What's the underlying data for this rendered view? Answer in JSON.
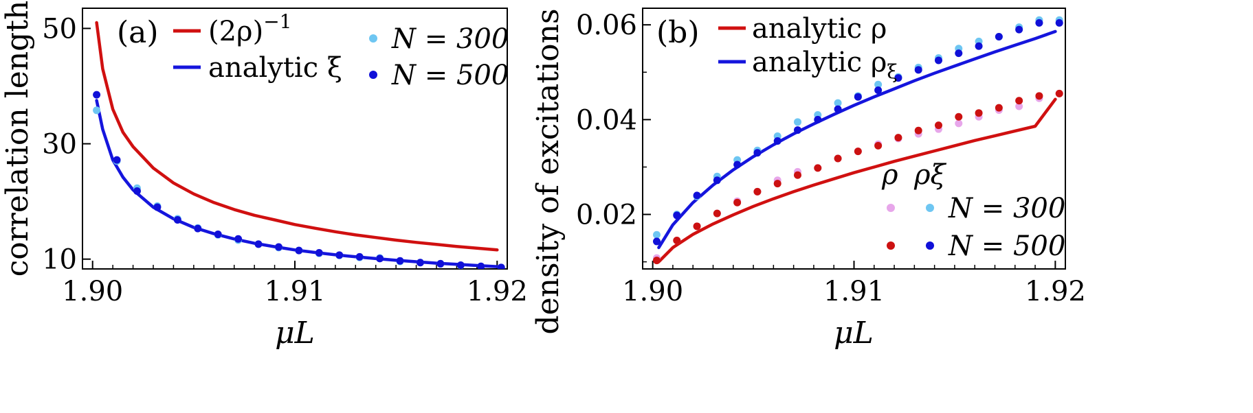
{
  "colors": {
    "red": "#d01010",
    "blue": "#1515dd",
    "light_blue": "#6ec6f2",
    "dark_blue": "#1010d8",
    "pink": "#e7a6ea",
    "dark_red": "#cc1111"
  },
  "chart_data": [
    {
      "type": "line",
      "panel": "(a)",
      "xlabel": "μL",
      "ylabel": "correlation length",
      "xlim": [
        1.8995,
        1.9205
      ],
      "ylim": [
        8.3,
        53.5
      ],
      "xticks": [
        1.9,
        1.91,
        1.92
      ],
      "xtick_labels": [
        "1.90",
        "1.91",
        "1.92"
      ],
      "yticks": [
        10,
        30,
        50
      ],
      "ytick_labels": [
        "10",
        "30",
        "50"
      ],
      "x_minor_ticks": [
        1.901,
        1.902,
        1.903,
        1.904,
        1.905,
        1.906,
        1.907,
        1.908,
        1.909,
        1.911,
        1.912,
        1.913,
        1.914,
        1.915,
        1.916,
        1.917,
        1.918,
        1.919
      ],
      "legend_position": "top",
      "series": [
        {
          "name": "(2ρ)−1",
          "label_main": "(2ρ)",
          "label_sup": "−1",
          "kind": "line",
          "color_key": "red",
          "x": [
            1.9002,
            1.9005,
            1.901,
            1.9015,
            1.902,
            1.903,
            1.904,
            1.905,
            1.906,
            1.907,
            1.908,
            1.909,
            1.91,
            1.911,
            1.912,
            1.913,
            1.914,
            1.915,
            1.916,
            1.917,
            1.918,
            1.919,
            1.92
          ],
          "y": [
            51,
            43,
            36,
            32,
            29.5,
            25.8,
            23.2,
            21.3,
            19.8,
            18.6,
            17.6,
            16.8,
            16.0,
            15.35,
            14.75,
            14.2,
            13.75,
            13.3,
            12.9,
            12.55,
            12.2,
            11.9,
            11.6
          ]
        },
        {
          "name": "analytic ξ",
          "label_main": "analytic ξ",
          "kind": "line",
          "color_key": "blue",
          "x": [
            1.9002,
            1.9005,
            1.901,
            1.9015,
            1.902,
            1.903,
            1.904,
            1.905,
            1.906,
            1.907,
            1.908,
            1.909,
            1.91,
            1.911,
            1.912,
            1.913,
            1.914,
            1.915,
            1.916,
            1.917,
            1.918,
            1.919,
            1.92
          ],
          "y": [
            37.5,
            32.5,
            27.2,
            24.2,
            22.0,
            19.0,
            17.0,
            15.5,
            14.4,
            13.5,
            12.75,
            12.15,
            11.6,
            11.15,
            10.75,
            10.4,
            10.1,
            9.8,
            9.55,
            9.3,
            9.1,
            8.9,
            8.7
          ]
        },
        {
          "name": "N = 300",
          "label_main": "N = 300",
          "kind": "scatter",
          "color_key": "light_blue",
          "x": [
            1.9002,
            1.9012,
            1.9022,
            1.9032,
            1.9042,
            1.9052,
            1.9062,
            1.9072,
            1.9082,
            1.9092,
            1.9102,
            1.9112,
            1.9122,
            1.9132,
            1.9142,
            1.9152,
            1.9162,
            1.9172,
            1.9182,
            1.9192,
            1.9202
          ],
          "y": [
            35.8,
            27.0,
            22.3,
            19.2,
            17.0,
            15.4,
            14.2,
            13.3,
            12.6,
            12.0,
            11.5,
            11.0,
            10.65,
            10.3,
            10.2,
            9.6,
            9.4,
            9.2,
            8.9,
            8.75,
            8.55
          ]
        },
        {
          "name": "N = 500",
          "label_main": "N = 500",
          "kind": "scatter",
          "color_key": "dark_blue",
          "x": [
            1.9002,
            1.9012,
            1.9022,
            1.9032,
            1.9042,
            1.9052,
            1.9062,
            1.9072,
            1.9082,
            1.9092,
            1.9102,
            1.9112,
            1.9122,
            1.9132,
            1.9142,
            1.9152,
            1.9162,
            1.9172,
            1.9182,
            1.9192,
            1.9202
          ],
          "y": [
            38.5,
            27.2,
            21.8,
            19.0,
            16.8,
            15.3,
            14.3,
            13.5,
            12.6,
            12.1,
            11.5,
            11.1,
            10.7,
            10.4,
            10.1,
            9.7,
            9.4,
            9.2,
            8.95,
            8.75,
            8.55
          ]
        }
      ]
    },
    {
      "type": "line",
      "panel": "(b)",
      "xlabel": "μL",
      "ylabel": "density of excitations",
      "xlim": [
        1.8995,
        1.9205
      ],
      "ylim": [
        0.0085,
        0.0635
      ],
      "xticks": [
        1.9,
        1.91,
        1.92
      ],
      "xtick_labels": [
        "1.90",
        "1.91",
        "1.92"
      ],
      "yticks": [
        0.02,
        0.04,
        0.06
      ],
      "ytick_labels": [
        "0.02",
        "0.04",
        "0.06"
      ],
      "x_minor_ticks": [
        1.901,
        1.902,
        1.903,
        1.904,
        1.905,
        1.906,
        1.907,
        1.908,
        1.909,
        1.911,
        1.912,
        1.913,
        1.914,
        1.915,
        1.916,
        1.917,
        1.918,
        1.919
      ],
      "y_minor_ticks": [
        0.01,
        0.03,
        0.05
      ],
      "legend_position": "top-left",
      "legend2_header": [
        "ρ",
        "ρξ"
      ],
      "series": [
        {
          "name": "analytic ρ",
          "label_main": "analytic ρ",
          "kind": "line",
          "color_key": "red",
          "x": [
            1.9003,
            1.901,
            1.902,
            1.903,
            1.904,
            1.905,
            1.906,
            1.907,
            1.908,
            1.909,
            1.91,
            1.911,
            1.912,
            1.913,
            1.914,
            1.915,
            1.916,
            1.917,
            1.918,
            1.919,
            1.92
          ],
          "y": [
            0.01,
            0.013,
            0.0158,
            0.018,
            0.0199,
            0.0217,
            0.0233,
            0.0248,
            0.0262,
            0.0275,
            0.0288,
            0.03,
            0.0312,
            0.0323,
            0.0334,
            0.0345,
            0.0356,
            0.0366,
            0.0376,
            0.0386,
            0.0443
          ]
        },
        {
          "name": "analytic ρξ",
          "label_main": "analytic ρ",
          "label_sub": "ξ",
          "kind": "line",
          "color_key": "blue",
          "x": [
            1.9003,
            1.901,
            1.902,
            1.903,
            1.904,
            1.905,
            1.906,
            1.907,
            1.908,
            1.909,
            1.91,
            1.911,
            1.912,
            1.913,
            1.914,
            1.915,
            1.916,
            1.917,
            1.918,
            1.919,
            1.92
          ],
          "y": [
            0.013,
            0.0178,
            0.0225,
            0.0262,
            0.0294,
            0.0322,
            0.0347,
            0.037,
            0.0391,
            0.0411,
            0.043,
            0.0448,
            0.0465,
            0.0482,
            0.0498,
            0.0513,
            0.0528,
            0.0543,
            0.0557,
            0.0571,
            0.0586
          ]
        },
        {
          "name": "ρ N = 300",
          "kind": "scatter",
          "color_key": "pink",
          "x": [
            1.9002,
            1.9012,
            1.9022,
            1.9032,
            1.9042,
            1.9052,
            1.9062,
            1.9072,
            1.9082,
            1.9092,
            1.9102,
            1.9112,
            1.9122,
            1.9132,
            1.9142,
            1.9152,
            1.9162,
            1.9172,
            1.9182,
            1.9192,
            1.9202
          ],
          "y": [
            0.0108,
            0.0145,
            0.0175,
            0.0202,
            0.0228,
            0.0248,
            0.0272,
            0.029,
            0.0298,
            0.0318,
            0.0333,
            0.0348,
            0.036,
            0.037,
            0.038,
            0.0392,
            0.0406,
            0.042,
            0.0428,
            0.0445,
            0.0455
          ]
        },
        {
          "name": "ρ N = 500",
          "kind": "scatter",
          "color_key": "dark_red",
          "x": [
            1.9002,
            1.9012,
            1.9022,
            1.9032,
            1.9042,
            1.9052,
            1.9062,
            1.9072,
            1.9082,
            1.9092,
            1.9102,
            1.9112,
            1.9122,
            1.9132,
            1.9142,
            1.9152,
            1.9162,
            1.9172,
            1.9182,
            1.9192,
            1.9202
          ],
          "y": [
            0.0103,
            0.0145,
            0.0175,
            0.0202,
            0.0225,
            0.0248,
            0.0265,
            0.0283,
            0.0298,
            0.0318,
            0.0333,
            0.0345,
            0.0362,
            0.0377,
            0.0388,
            0.0406,
            0.0414,
            0.0425,
            0.044,
            0.045,
            0.0455
          ]
        },
        {
          "name": "ρξ N = 300",
          "kind": "scatter",
          "color_key": "light_blue",
          "x": [
            1.9002,
            1.9012,
            1.9022,
            1.9032,
            1.9042,
            1.9052,
            1.9062,
            1.9072,
            1.9082,
            1.9092,
            1.9102,
            1.9112,
            1.9122,
            1.9132,
            1.9142,
            1.9152,
            1.9162,
            1.9172,
            1.9182,
            1.9192,
            1.9202
          ],
          "y": [
            0.0157,
            0.02,
            0.0238,
            0.028,
            0.0315,
            0.0335,
            0.0365,
            0.0395,
            0.041,
            0.0435,
            0.045,
            0.0474,
            0.049,
            0.051,
            0.053,
            0.055,
            0.0565,
            0.0575,
            0.0595,
            0.061,
            0.061
          ]
        },
        {
          "name": "ρξ N = 500",
          "kind": "scatter",
          "color_key": "dark_blue",
          "x": [
            1.9002,
            1.9012,
            1.9022,
            1.9032,
            1.9042,
            1.9052,
            1.9062,
            1.9072,
            1.9082,
            1.9092,
            1.9102,
            1.9112,
            1.9122,
            1.9132,
            1.9142,
            1.9152,
            1.9162,
            1.9172,
            1.9182,
            1.9192,
            1.9202
          ],
          "y": [
            0.0143,
            0.0198,
            0.024,
            0.0272,
            0.0305,
            0.033,
            0.0355,
            0.0378,
            0.04,
            0.0422,
            0.0448,
            0.0462,
            0.0488,
            0.0505,
            0.0525,
            0.054,
            0.0555,
            0.0575,
            0.059,
            0.0604,
            0.0604
          ]
        }
      ],
      "legend2_rows": [
        {
          "label": "N = 300",
          "color_keys": [
            "pink",
            "light_blue"
          ]
        },
        {
          "label": "N = 500",
          "color_keys": [
            "dark_red",
            "dark_blue"
          ]
        }
      ]
    }
  ]
}
